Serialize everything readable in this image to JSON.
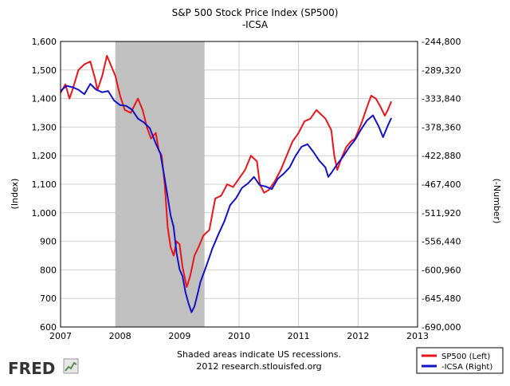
{
  "chart_data": {
    "type": "line",
    "title": "S&P 500 Stock Price Index (SP500)",
    "subtitle": "-ICSA",
    "ylabel_left": "(Index)",
    "ylabel_right": "(-Number)",
    "x_ticks": [
      "2007",
      "2008",
      "2009",
      "2010",
      "2011",
      "2012",
      "2013"
    ],
    "xlim": [
      2007,
      2013
    ],
    "y_left_ticks": [
      "600",
      "700",
      "800",
      "900",
      "1,000",
      "1,100",
      "1,200",
      "1,300",
      "1,400",
      "1,500",
      "1,600"
    ],
    "y_left_lim": [
      600,
      1600
    ],
    "y_right_ticks": [
      "-690,000",
      "-645,480",
      "-600,960",
      "-556,440",
      "-511,920",
      "-467,400",
      "-422,880",
      "-378,360",
      "-333,840",
      "-289,320",
      "-244,800"
    ],
    "y_right_lim": [
      -690000,
      -244800
    ],
    "grid": true,
    "recession_shading": {
      "start": 2007.92,
      "end": 2009.42
    },
    "series": [
      {
        "name": "SP500 (Left)",
        "axis": "left",
        "color": "#e8161b",
        "x": [
          2007.0,
          2007.08,
          2007.15,
          2007.2,
          2007.3,
          2007.4,
          2007.5,
          2007.58,
          2007.62,
          2007.7,
          2007.78,
          2007.84,
          2007.92,
          2008.0,
          2008.08,
          2008.18,
          2008.3,
          2008.38,
          2008.45,
          2008.52,
          2008.6,
          2008.65,
          2008.7,
          2008.75,
          2008.8,
          2008.85,
          2008.9,
          2008.95,
          2009.0,
          2009.05,
          2009.12,
          2009.18,
          2009.25,
          2009.32,
          2009.4,
          2009.5,
          2009.6,
          2009.7,
          2009.8,
          2009.9,
          2010.0,
          2010.1,
          2010.2,
          2010.3,
          2010.35,
          2010.42,
          2010.5,
          2010.6,
          2010.7,
          2010.8,
          2010.9,
          2011.0,
          2011.1,
          2011.2,
          2011.3,
          2011.35,
          2011.45,
          2011.55,
          2011.6,
          2011.65,
          2011.72,
          2011.8,
          2011.88,
          2011.95,
          2012.05,
          2012.15,
          2012.22,
          2012.3,
          2012.38,
          2012.45,
          2012.5,
          2012.56
        ],
        "y": [
          1420,
          1450,
          1400,
          1430,
          1500,
          1520,
          1530,
          1470,
          1430,
          1480,
          1550,
          1520,
          1480,
          1410,
          1360,
          1350,
          1400,
          1360,
          1300,
          1260,
          1280,
          1220,
          1200,
          1100,
          950,
          880,
          850,
          900,
          890,
          810,
          740,
          780,
          850,
          880,
          920,
          940,
          1050,
          1060,
          1100,
          1090,
          1120,
          1150,
          1200,
          1180,
          1100,
          1070,
          1080,
          1110,
          1150,
          1200,
          1250,
          1280,
          1320,
          1330,
          1360,
          1350,
          1330,
          1290,
          1200,
          1150,
          1190,
          1230,
          1250,
          1260,
          1310,
          1370,
          1410,
          1400,
          1370,
          1340,
          1360,
          1390
        ]
      },
      {
        "name": "-ICSA (Right)",
        "axis": "right",
        "color": "#1212c8",
        "x": [
          2007.0,
          2007.1,
          2007.2,
          2007.3,
          2007.4,
          2007.5,
          2007.6,
          2007.7,
          2007.8,
          2007.9,
          2008.0,
          2008.1,
          2008.2,
          2008.3,
          2008.4,
          2008.5,
          2008.6,
          2008.68,
          2008.75,
          2008.8,
          2008.85,
          2008.9,
          2008.95,
          2009.0,
          2009.05,
          2009.1,
          2009.15,
          2009.2,
          2009.25,
          2009.3,
          2009.35,
          2009.45,
          2009.55,
          2009.65,
          2009.75,
          2009.85,
          2009.95,
          2010.05,
          2010.15,
          2010.25,
          2010.35,
          2010.45,
          2010.55,
          2010.65,
          2010.75,
          2010.85,
          2010.95,
          2011.05,
          2011.15,
          2011.25,
          2011.35,
          2011.45,
          2011.5,
          2011.55,
          2011.65,
          2011.75,
          2011.85,
          2011.95,
          2012.05,
          2012.15,
          2012.25,
          2012.35,
          2012.42,
          2012.5,
          2012.56
        ],
        "y": [
          -322000,
          -314000,
          -316000,
          -320000,
          -327000,
          -311000,
          -320000,
          -324000,
          -322000,
          -337000,
          -344000,
          -345000,
          -351000,
          -365000,
          -371000,
          -380000,
          -404000,
          -420000,
          -459000,
          -487000,
          -516000,
          -534000,
          -575000,
          -600000,
          -611000,
          -636000,
          -653000,
          -667000,
          -658000,
          -640000,
          -620000,
          -595000,
          -568000,
          -546000,
          -526000,
          -500000,
          -489000,
          -473000,
          -466000,
          -456000,
          -469000,
          -471000,
          -475000,
          -459000,
          -451000,
          -441000,
          -423000,
          -409000,
          -405000,
          -417000,
          -431000,
          -441000,
          -456000,
          -450000,
          -436000,
          -424000,
          -410000,
          -398000,
          -382000,
          -368000,
          -360000,
          -378000,
          -394000,
          -376000,
          -364000
        ]
      }
    ]
  },
  "footer": {
    "line1": "Shaded areas indicate US recessions.",
    "line2": "2012 research.stlouisfed.org"
  },
  "logo_text": "FRED",
  "legend": {
    "entry1": "SP500 (Left)",
    "entry2": "-ICSA (Right)"
  }
}
